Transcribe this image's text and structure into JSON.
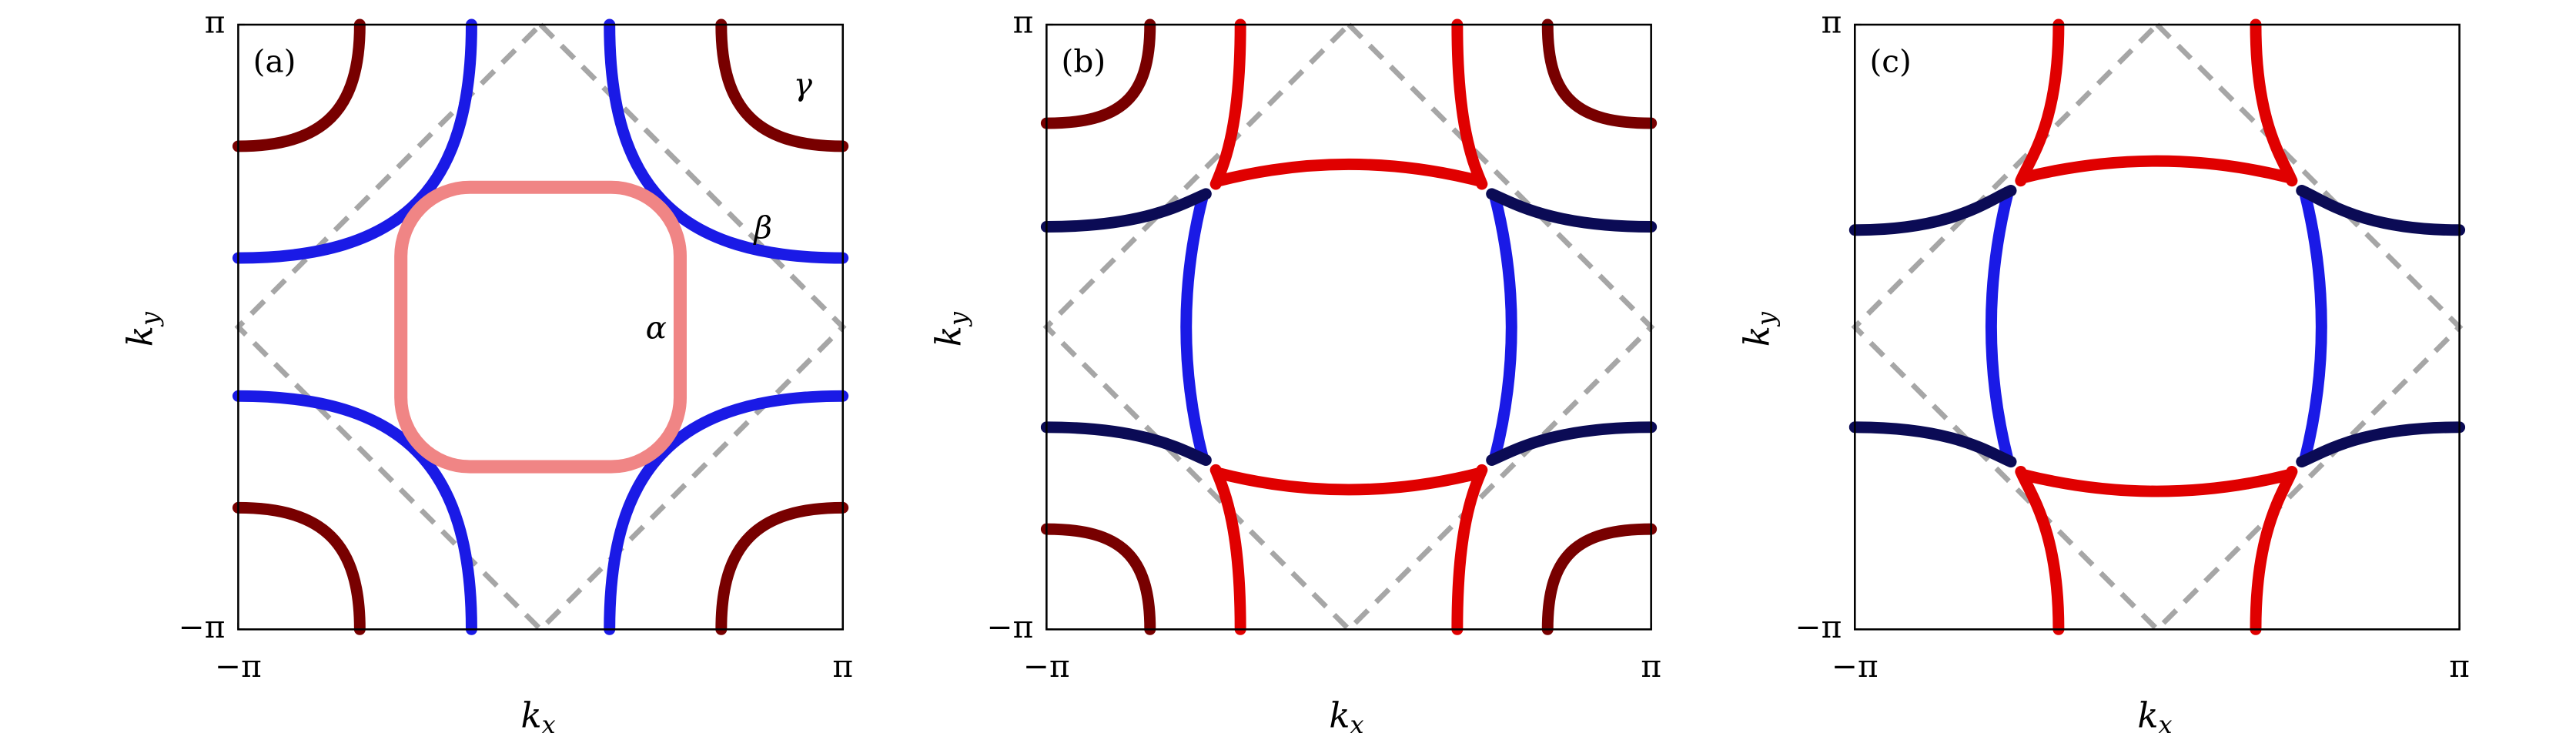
{
  "chart_data": [
    {
      "type": "contour",
      "panel_label": "(a)",
      "xlabel": {
        "main": "k",
        "subscript": "x"
      },
      "ylabel": {
        "main": "k",
        "subscript": "y"
      },
      "xlim": [
        -3.14159,
        3.14159
      ],
      "ylim": [
        -3.14159,
        3.14159
      ],
      "xticks": [
        {
          "value": -3.14159,
          "label": "−π"
        },
        {
          "value": 3.14159,
          "label": "π"
        }
      ],
      "yticks": [
        {
          "value": -3.14159,
          "label": "−π"
        },
        {
          "value": 3.14159,
          "label": "π"
        }
      ],
      "annotations": [
        "γ",
        "β",
        "α"
      ]
    },
    {
      "type": "contour",
      "panel_label": "(b)",
      "xlabel": {
        "main": "k",
        "subscript": "x"
      },
      "ylabel": {
        "main": "k",
        "subscript": "y"
      },
      "xlim": [
        -3.14159,
        3.14159
      ],
      "ylim": [
        -3.14159,
        3.14159
      ],
      "xticks": [
        {
          "value": -3.14159,
          "label": "−π"
        },
        {
          "value": 3.14159,
          "label": "π"
        }
      ],
      "yticks": [
        {
          "value": -3.14159,
          "label": "−π"
        },
        {
          "value": 3.14159,
          "label": "π"
        }
      ]
    },
    {
      "type": "contour",
      "panel_label": "(c)",
      "xlabel": {
        "main": "k",
        "subscript": "x"
      },
      "ylabel": {
        "main": "k",
        "subscript": "y"
      },
      "xlim": [
        -3.14159,
        3.14159
      ],
      "ylim": [
        -3.14159,
        3.14159
      ],
      "xticks": [
        {
          "value": -3.14159,
          "label": "−π"
        },
        {
          "value": 3.14159,
          "label": "π"
        }
      ],
      "yticks": [
        {
          "value": -3.14159,
          "label": "−π"
        },
        {
          "value": 3.14159,
          "label": "π"
        }
      ]
    }
  ]
}
